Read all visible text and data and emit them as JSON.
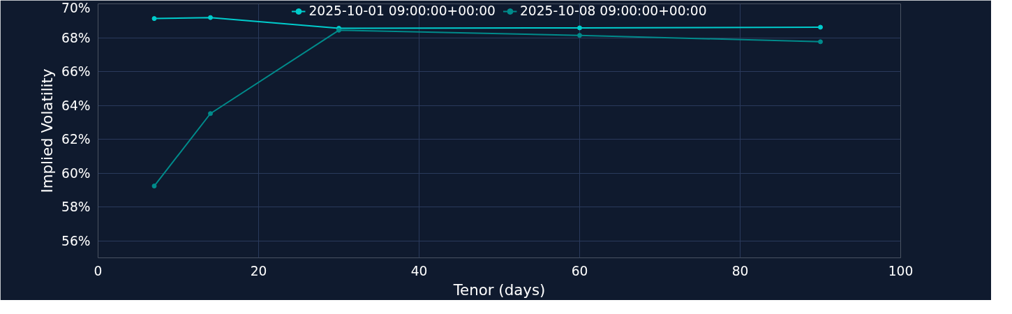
{
  "chart_data": {
    "type": "line",
    "xlabel": "Tenor (days)",
    "ylabel": "Implied Volatility",
    "x": [
      7,
      14,
      30,
      60,
      90
    ],
    "series": [
      {
        "name": "2025-10-01 09:00:00+00:00",
        "color": "#00cccc",
        "values": [
          69.13,
          69.19,
          68.56,
          68.58,
          68.62
        ]
      },
      {
        "name": "2025-10-08 09:00:00+00:00",
        "color": "#008b8b",
        "values": [
          59.24,
          63.52,
          68.44,
          68.14,
          67.76
        ]
      }
    ],
    "xlim": [
      0,
      100
    ],
    "xticks": [
      0,
      20,
      40,
      60,
      80,
      100
    ],
    "ylim": [
      55,
      70
    ],
    "yticks": [
      {
        "value": 56,
        "label": "56%"
      },
      {
        "value": 58,
        "label": "58%"
      },
      {
        "value": 60,
        "label": "60%"
      },
      {
        "value": 62,
        "label": "62%"
      },
      {
        "value": 64,
        "label": "64%"
      },
      {
        "value": 66,
        "label": "66%"
      },
      {
        "value": 68,
        "label": "68%"
      },
      {
        "value": 70,
        "label": "70%"
      }
    ],
    "grid": true,
    "legend": "top",
    "marker": "circle",
    "line_style": "solid"
  }
}
